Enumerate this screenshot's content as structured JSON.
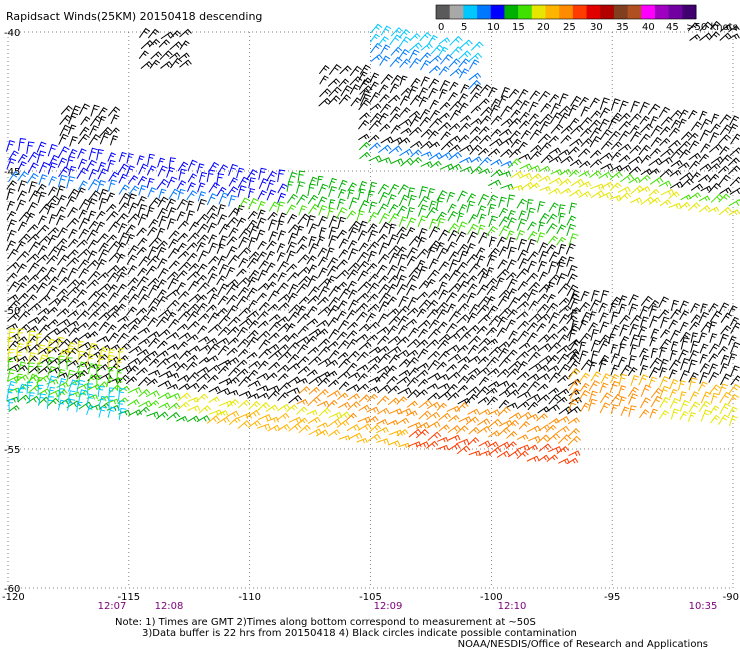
{
  "title": "Rapidsact Winds(25KM) 20150418 descending",
  "legend": {
    "unit_label": ">50 knots",
    "ticks": [
      "0",
      "5",
      "10",
      "15",
      "20",
      "25",
      "30",
      "35",
      "40",
      "45",
      ">50 knots"
    ],
    "colors": [
      "#5a5a5a",
      "#a8a8a8",
      "#00c8ff",
      "#0078ff",
      "#0000ff",
      "#00b000",
      "#40e000",
      "#e6e600",
      "#ffb400",
      "#ff8c00",
      "#ff3c00",
      "#e00000",
      "#b00000",
      "#804020",
      "#b05020",
      "#ff00ff",
      "#a000c0",
      "#7000a0",
      "#400070"
    ]
  },
  "map": {
    "lon_range": [
      -120,
      -90
    ],
    "lat_range": [
      -60,
      -40
    ],
    "lon_ticks": [
      "-120",
      "-115",
      "-110",
      "-105",
      "-100",
      "-95",
      "-90"
    ],
    "lat_ticks": [
      "-40",
      "-45",
      "-50",
      "-55",
      "-60"
    ]
  },
  "times": [
    "12:07",
    "12:08",
    "12:09",
    "12:10",
    "10:35"
  ],
  "notes": {
    "line1": "Note: 1) Times are GMT 2)Times along bottom correspond to measurement at ~50S",
    "line2": "3)Data buffer is 22 hrs from 20150418 4) Black circles indicate possible contamination",
    "credit": "NOAA/NESDIS/Office of Research and Applications"
  }
}
